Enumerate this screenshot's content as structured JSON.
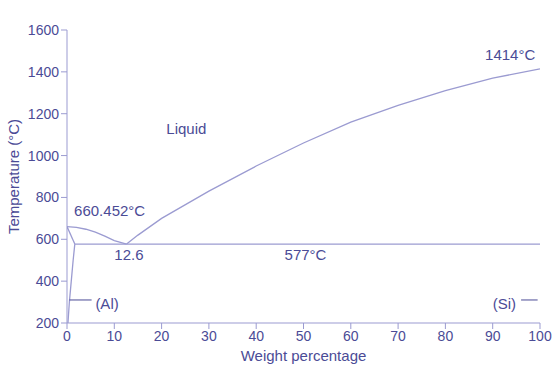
{
  "chart_data": {
    "type": "line",
    "x_label": "Weight percentage",
    "y_label": "Temperature (°C)",
    "xlim": [
      0,
      100
    ],
    "ylim": [
      200,
      1600
    ],
    "xticks": [
      0,
      10,
      20,
      30,
      40,
      50,
      60,
      70,
      80,
      90,
      100
    ],
    "yticks": [
      200,
      400,
      600,
      800,
      1000,
      1200,
      1400,
      1600
    ],
    "color": "#9b9bd1",
    "series": [
      {
        "x": [
          0,
          2,
          4,
          6,
          8,
          10,
          12.6
        ],
        "values": [
          660.452,
          657,
          648,
          634,
          615,
          594,
          577
        ]
      },
      {
        "x": [
          12.6,
          15,
          20,
          30,
          40,
          50,
          60,
          70,
          80,
          90,
          100
        ],
        "values": [
          577,
          620,
          700,
          830,
          950,
          1060,
          1160,
          1240,
          1310,
          1370,
          1414
        ]
      },
      {
        "x": [
          1.65,
          100
        ],
        "values": [
          577,
          577
        ]
      },
      {
        "x": [
          0,
          1.65
        ],
        "values": [
          660.452,
          577
        ]
      },
      {
        "x": [
          1.65,
          1.3,
          0.9,
          0.5,
          0.2
        ],
        "values": [
          577,
          500,
          400,
          300,
          200
        ]
      }
    ],
    "annotations": [
      "Liquid",
      "660.452°C",
      "12.6",
      "577°C",
      "1414°C",
      "(Al)",
      "(Si)"
    ]
  }
}
